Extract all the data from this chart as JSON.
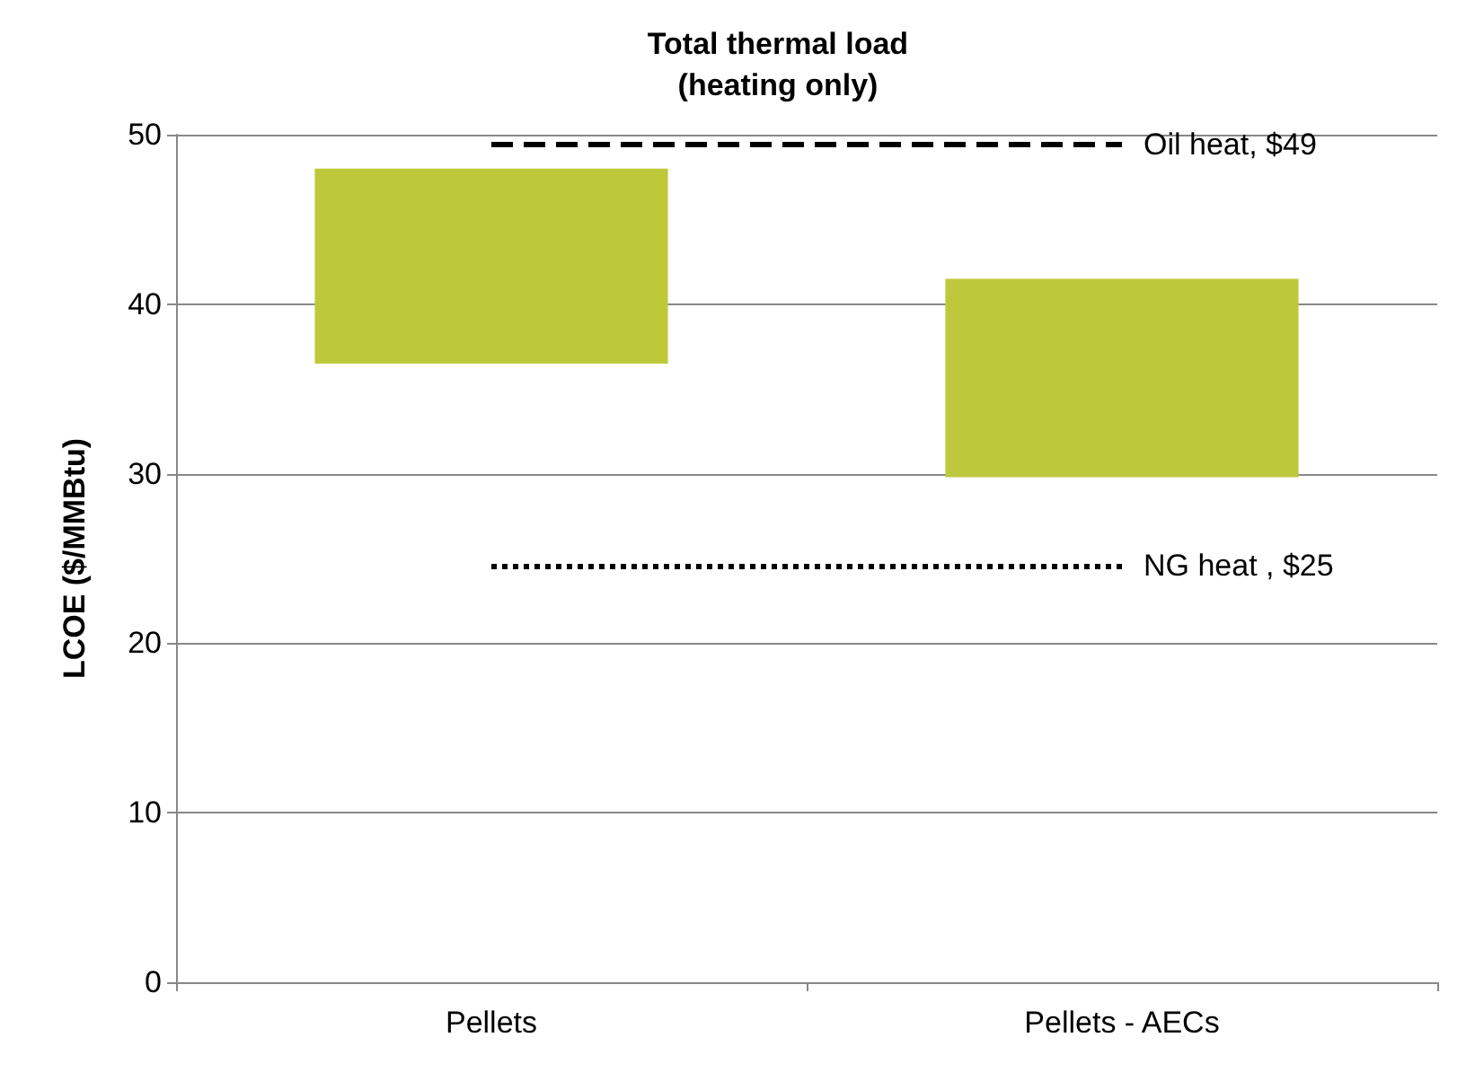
{
  "chart_data": {
    "type": "bar",
    "title": "Total thermal load\n(heating only)",
    "ylabel": "LCOE ($/MMBtu)",
    "categories": [
      "Pellets",
      "Pellets - AECs"
    ],
    "base": [
      36.5,
      29.8
    ],
    "values": [
      11.5,
      11.7
    ],
    "color": "#bdc93a",
    "ylim": [
      0,
      50
    ],
    "yticks": [
      0,
      10,
      20,
      30,
      40,
      50
    ],
    "grid": "y",
    "ref_lines": [
      {
        "axis": "y",
        "value": 49.4,
        "label": "Oil heat, $49",
        "line_style": "dashed",
        "color": "#000000"
      },
      {
        "axis": "y",
        "value": 24.6,
        "label": "NG heat , $25",
        "line_style": "dotted",
        "color": "#000000"
      }
    ]
  }
}
